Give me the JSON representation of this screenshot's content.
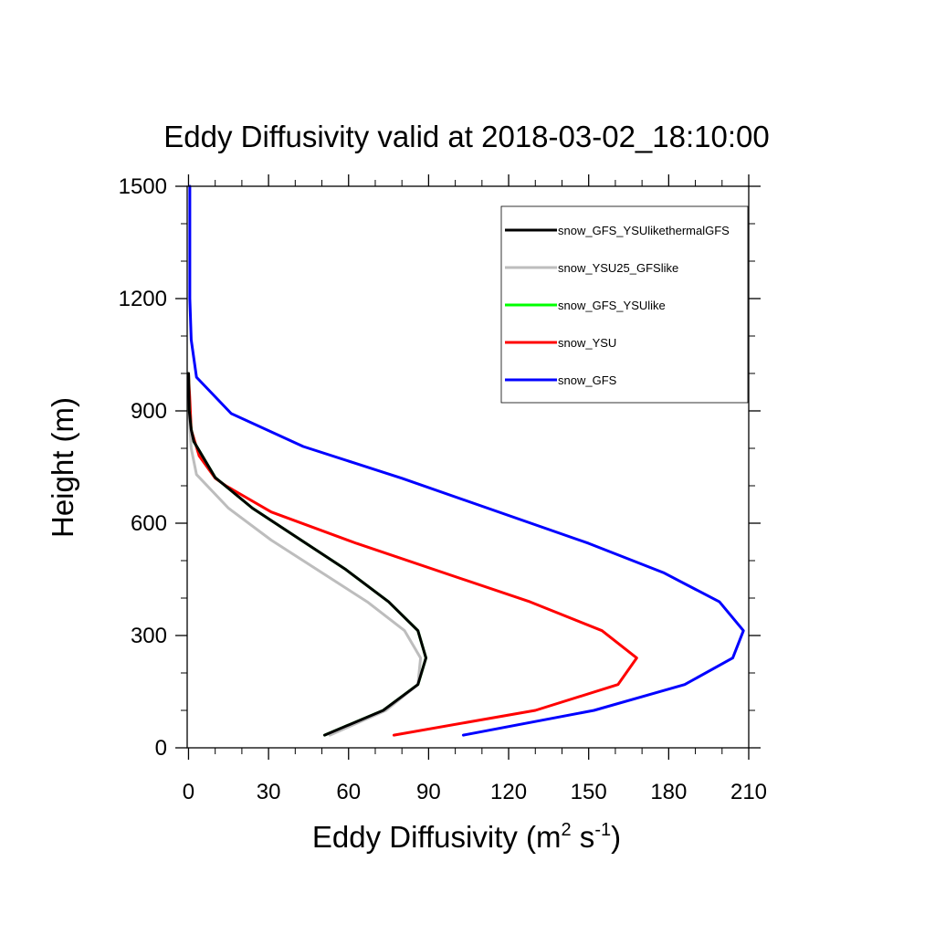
{
  "chart_data": {
    "type": "line",
    "title": "Eddy Diffusivity valid at 2018-03-02_18:10:00",
    "xlabel_main": "Eddy Diffusivity (m",
    "xlabel_sup1": "2",
    "xlabel_mid": " s",
    "xlabel_sup2": "-1",
    "xlabel_end": ")",
    "ylabel": "Height (m)",
    "xlim": [
      -0.5,
      210
    ],
    "ylim": [
      0,
      1500
    ],
    "xticks": [
      "0",
      "30",
      "60",
      "90",
      "120",
      "150",
      "180",
      "210"
    ],
    "xtick_values": [
      0,
      30,
      60,
      90,
      120,
      150,
      180,
      210
    ],
    "yticks": [
      "0",
      "300",
      "600",
      "900",
      "1200",
      "1500"
    ],
    "ytick_values": [
      0,
      300,
      600,
      900,
      1200,
      1500
    ],
    "legend_position": "top-right",
    "series": [
      {
        "name": "snow_GFS",
        "color": "#0000ff",
        "x": [
          103,
          152,
          186,
          204,
          208,
          199,
          178,
          150,
          80,
          43,
          16,
          3,
          1,
          0.5,
          0.5,
          0.5
        ],
        "y": [
          34,
          100,
          169,
          240,
          313,
          390,
          468,
          546,
          720,
          805,
          893,
          990,
          1090,
          1200,
          1300,
          1500
        ]
      },
      {
        "name": "snow_YSU",
        "color": "#ff0000",
        "x": [
          77,
          130,
          161,
          168,
          155,
          128,
          63,
          31,
          14,
          10,
          4,
          1,
          0.5,
          0
        ],
        "y": [
          34,
          100,
          169,
          240,
          313,
          390,
          546,
          630,
          700,
          720,
          780,
          850,
          930,
          1000
        ]
      },
      {
        "name": "snow_GFS_YSUlike",
        "color": "#00ff00",
        "x": [
          51,
          73,
          86,
          89,
          86,
          75,
          59,
          24,
          10,
          2,
          1,
          0.3,
          0
        ],
        "y": [
          34,
          100,
          169,
          240,
          313,
          390,
          476,
          640,
          722,
          818,
          850,
          900,
          1000
        ]
      },
      {
        "name": "snow_YSU25_GFSlike",
        "color": "#bdbdbd",
        "x": [
          53,
          74,
          86,
          87,
          81,
          67,
          31,
          15,
          3,
          1,
          0.3,
          0
        ],
        "y": [
          34,
          100,
          169,
          240,
          313,
          390,
          555,
          640,
          730,
          800,
          880,
          1000
        ]
      },
      {
        "name": "snow_GFS_YSUlikethermalGFS",
        "color": "#000000",
        "x": [
          51,
          73,
          86,
          89,
          86,
          75,
          59,
          24,
          10,
          2,
          1,
          0.3,
          0
        ],
        "y": [
          34,
          100,
          169,
          240,
          313,
          390,
          476,
          640,
          722,
          818,
          850,
          900,
          1000
        ]
      }
    ],
    "legend_order": [
      "snow_GFS_YSUlikethermalGFS",
      "snow_YSU25_GFSlike",
      "snow_GFS_YSUlike",
      "snow_YSU",
      "snow_GFS"
    ]
  }
}
